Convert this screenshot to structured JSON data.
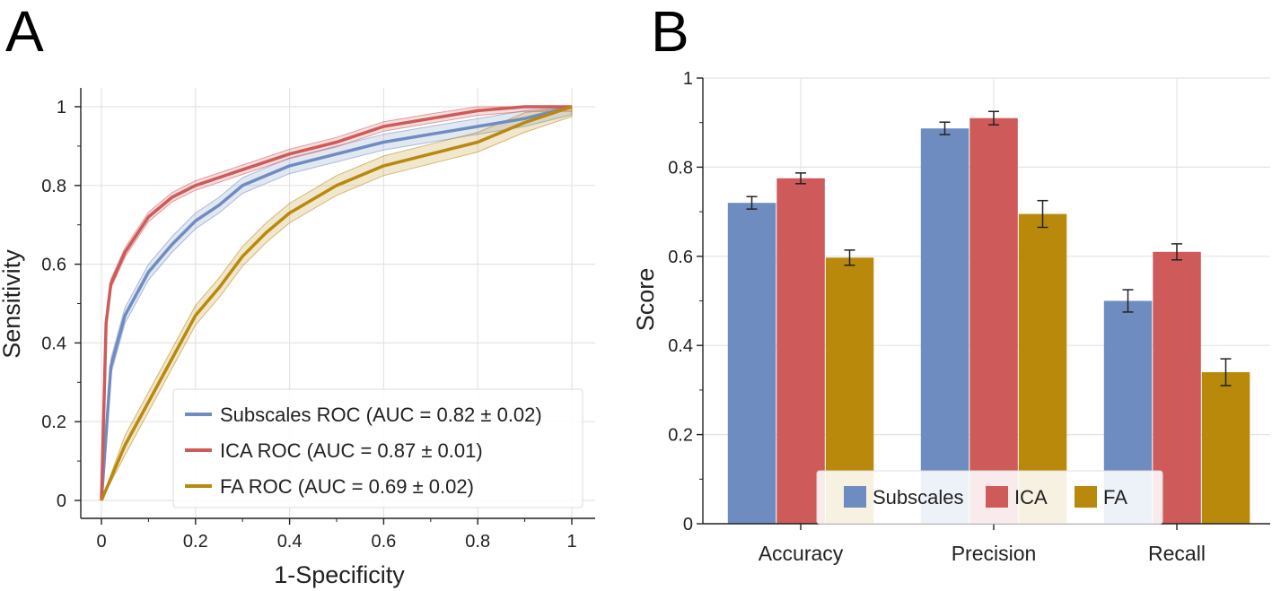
{
  "panels": {
    "a": "A",
    "b": "B"
  },
  "colors": {
    "subscales": "#6f8cc0",
    "ica": "#cf5a5a",
    "fa": "#b8890b",
    "grid": "#e4e4e4",
    "axis": "#222222"
  },
  "chart_data": [
    {
      "type": "line",
      "panel": "A",
      "xlabel": "1-Specificity",
      "ylabel": "Sensitivity",
      "xlim": [
        0,
        1
      ],
      "ylim": [
        0,
        1
      ],
      "xticks": [
        0,
        0.2,
        0.4,
        0.6,
        0.8,
        1
      ],
      "xtick_labels": [
        "0",
        "0.2",
        "0.4",
        "0.6",
        "0.8",
        "1"
      ],
      "yticks": [
        0,
        0.2,
        0.4,
        0.6,
        0.8,
        1
      ],
      "ytick_labels": [
        "0",
        "0.2",
        "0.4",
        "0.6",
        "0.8",
        "1"
      ],
      "grid": true,
      "legend_position": "bottom-right",
      "series": [
        {
          "name": "Subscales ROC (AUC = 0.82 ± 0.02)",
          "color_key": "subscales",
          "band": 0.02,
          "x": [
            0,
            0.02,
            0.05,
            0.1,
            0.15,
            0.2,
            0.25,
            0.3,
            0.4,
            0.5,
            0.6,
            0.7,
            0.8,
            0.9,
            1
          ],
          "y": [
            0,
            0.34,
            0.47,
            0.58,
            0.65,
            0.71,
            0.75,
            0.8,
            0.85,
            0.88,
            0.91,
            0.93,
            0.95,
            0.97,
            1
          ]
        },
        {
          "name": "ICA ROC (AUC = 0.87 ± 0.01)",
          "color_key": "ica",
          "band": 0.012,
          "x": [
            0,
            0.01,
            0.02,
            0.05,
            0.1,
            0.15,
            0.2,
            0.3,
            0.4,
            0.5,
            0.6,
            0.7,
            0.8,
            0.9,
            1
          ],
          "y": [
            0,
            0.45,
            0.55,
            0.63,
            0.72,
            0.77,
            0.8,
            0.84,
            0.88,
            0.91,
            0.95,
            0.97,
            0.99,
            1,
            1
          ]
        },
        {
          "name": "FA ROC (AUC = 0.69 ± 0.02)",
          "color_key": "fa",
          "band": 0.025,
          "x": [
            0,
            0.05,
            0.1,
            0.15,
            0.2,
            0.25,
            0.3,
            0.35,
            0.4,
            0.5,
            0.6,
            0.7,
            0.8,
            0.9,
            1
          ],
          "y": [
            0,
            0.14,
            0.25,
            0.36,
            0.47,
            0.54,
            0.62,
            0.68,
            0.73,
            0.8,
            0.85,
            0.88,
            0.91,
            0.96,
            1
          ]
        }
      ]
    },
    {
      "type": "bar",
      "panel": "B",
      "xlabel": "",
      "ylabel": "Score",
      "ylim": [
        0,
        1
      ],
      "yticks": [
        0,
        0.2,
        0.4,
        0.6,
        0.8,
        1
      ],
      "ytick_labels": [
        "0",
        "0.2",
        "0.4",
        "0.6",
        "0.8",
        "1"
      ],
      "categories": [
        "Accuracy",
        "Precision",
        "Recall"
      ],
      "grid": true,
      "legend_position": "bottom-center",
      "series": [
        {
          "name": "Subscales",
          "color_key": "subscales",
          "values": [
            0.72,
            0.887,
            0.5
          ],
          "errors": [
            0.014,
            0.014,
            0.025
          ]
        },
        {
          "name": "ICA",
          "color_key": "ica",
          "values": [
            0.775,
            0.91,
            0.61
          ],
          "errors": [
            0.012,
            0.015,
            0.018
          ]
        },
        {
          "name": "FA",
          "color_key": "fa",
          "values": [
            0.597,
            0.695,
            0.34
          ],
          "errors": [
            0.017,
            0.03,
            0.03
          ]
        }
      ]
    }
  ]
}
